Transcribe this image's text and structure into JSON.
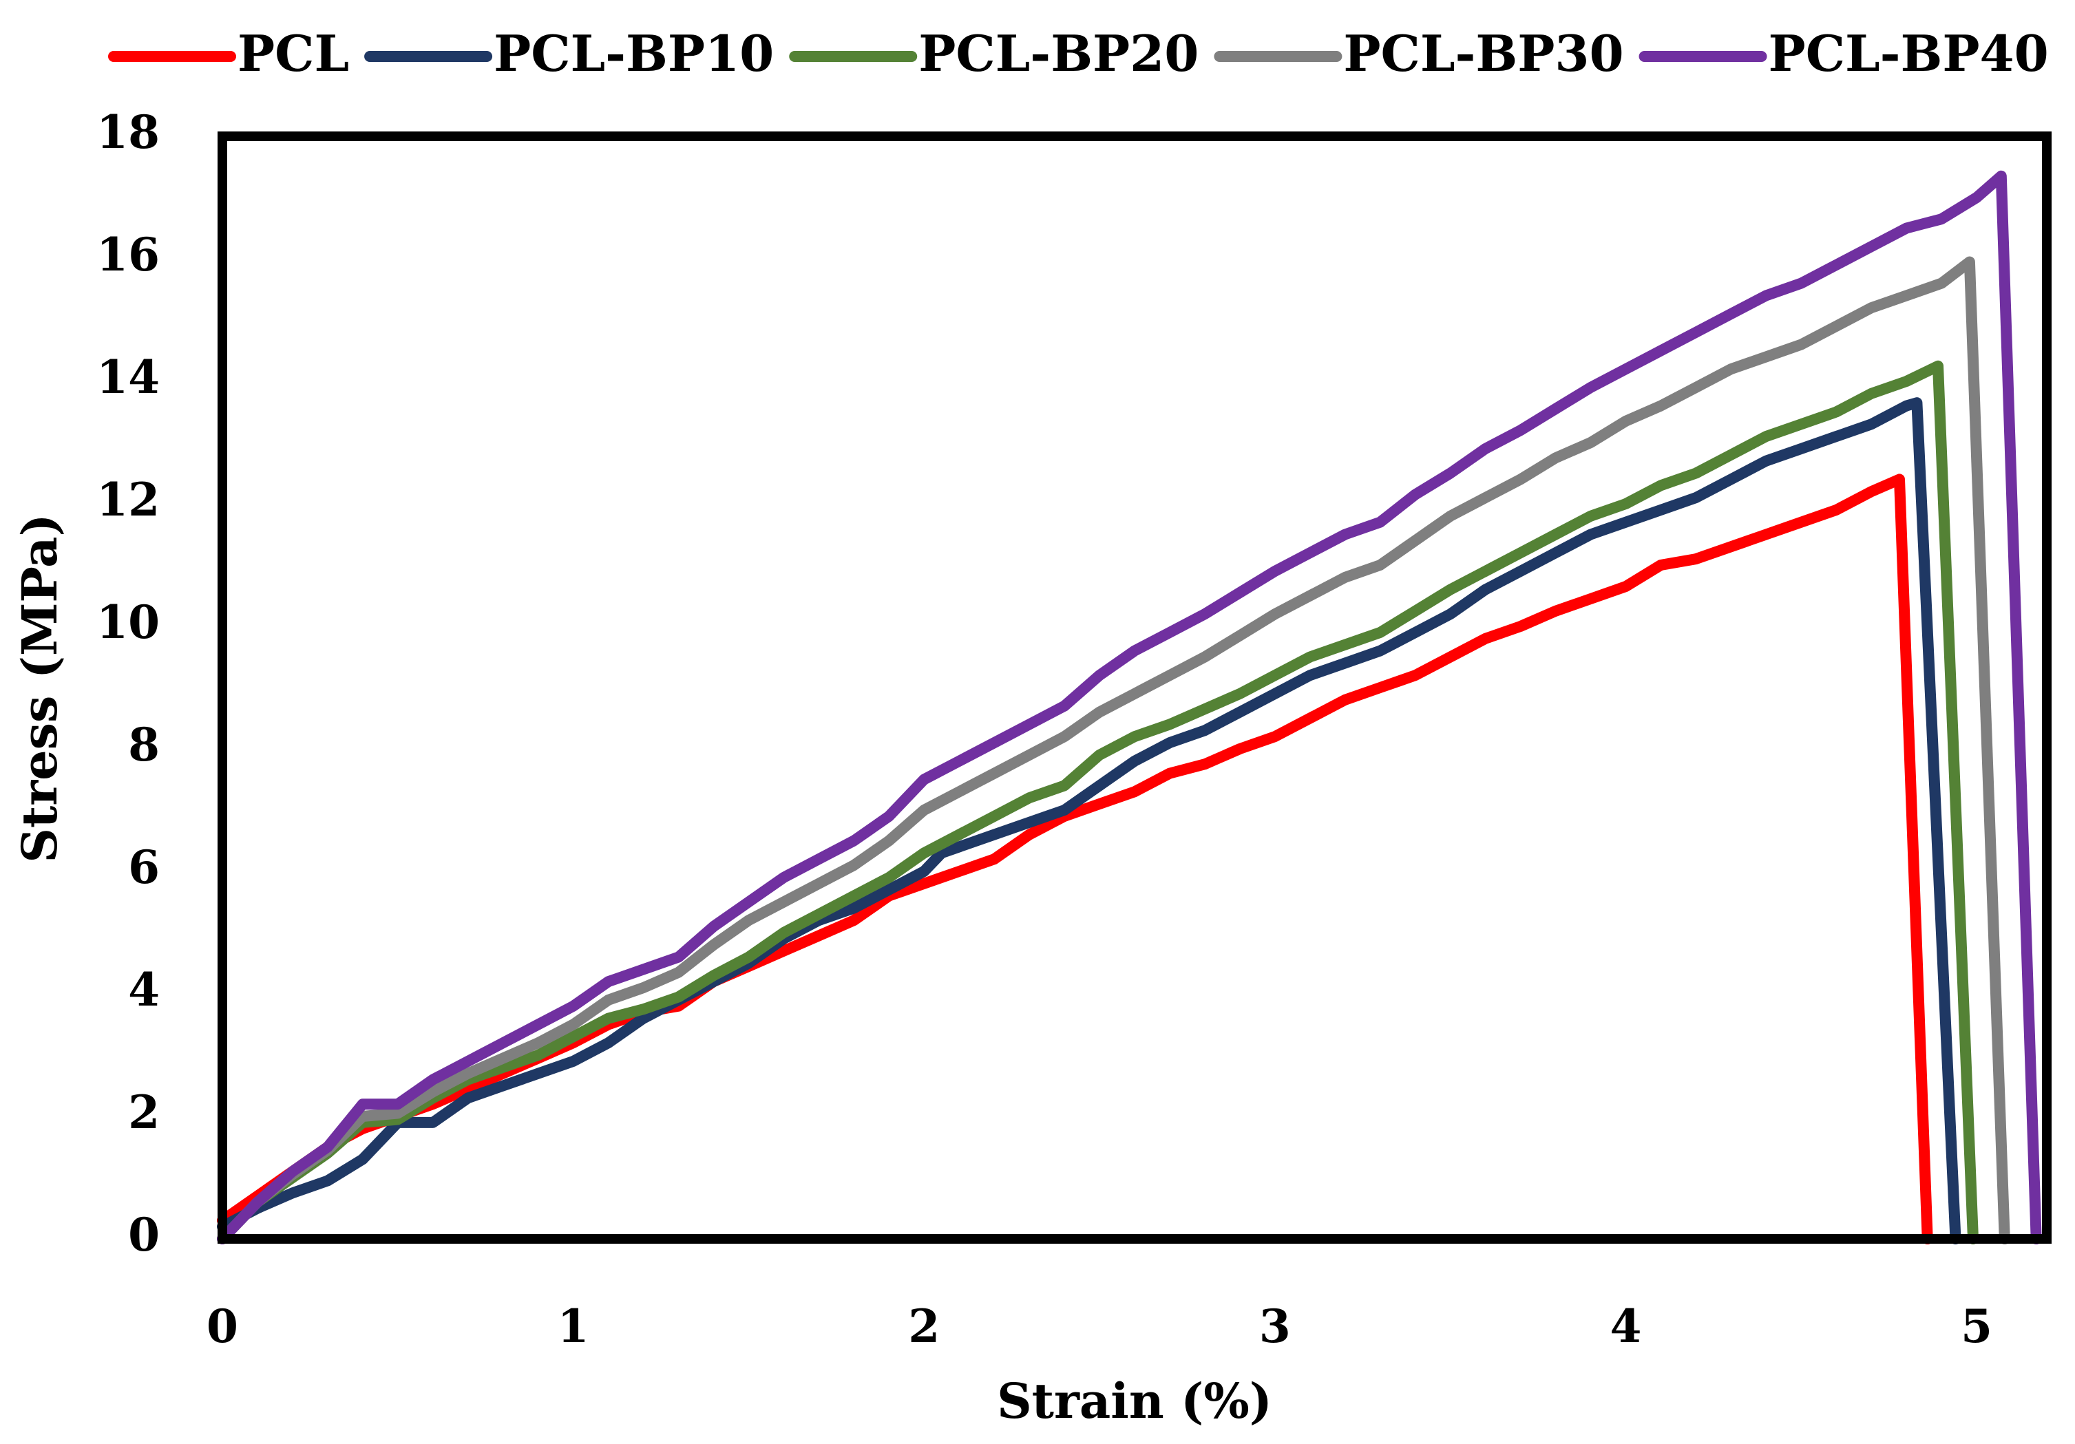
{
  "chart_data": {
    "type": "line",
    "title": "",
    "xlabel": "Strain (%)",
    "ylabel": "Stress (MPa)",
    "xlim": [
      0,
      5.2
    ],
    "ylim": [
      0,
      18
    ],
    "x_ticks": [
      "0",
      "1",
      "2",
      "3",
      "4",
      "5"
    ],
    "y_ticks": [
      "0",
      "2",
      "4",
      "6",
      "8",
      "10",
      "12",
      "14",
      "16",
      "18"
    ],
    "grid": false,
    "legend_position": "top",
    "series": [
      {
        "name": "PCL",
        "color": "#ff0000",
        "points": [
          [
            0,
            0.3
          ],
          [
            0.1,
            0.7
          ],
          [
            0.2,
            1.1
          ],
          [
            0.3,
            1.5
          ],
          [
            0.4,
            1.8
          ],
          [
            0.5,
            2.0
          ],
          [
            0.6,
            2.2
          ],
          [
            0.7,
            2.45
          ],
          [
            0.8,
            2.7
          ],
          [
            0.9,
            2.95
          ],
          [
            1.0,
            3.2
          ],
          [
            1.1,
            3.5
          ],
          [
            1.2,
            3.7
          ],
          [
            1.3,
            3.8
          ],
          [
            1.4,
            4.2
          ],
          [
            1.5,
            4.45
          ],
          [
            1.6,
            4.7
          ],
          [
            1.7,
            4.95
          ],
          [
            1.8,
            5.2
          ],
          [
            1.9,
            5.6
          ],
          [
            2.0,
            5.8
          ],
          [
            2.1,
            6.0
          ],
          [
            2.2,
            6.2
          ],
          [
            2.3,
            6.6
          ],
          [
            2.4,
            6.9
          ],
          [
            2.5,
            7.1
          ],
          [
            2.6,
            7.3
          ],
          [
            2.7,
            7.6
          ],
          [
            2.8,
            7.75
          ],
          [
            2.9,
            8.0
          ],
          [
            3.0,
            8.2
          ],
          [
            3.1,
            8.5
          ],
          [
            3.2,
            8.8
          ],
          [
            3.3,
            9.0
          ],
          [
            3.4,
            9.2
          ],
          [
            3.5,
            9.5
          ],
          [
            3.6,
            9.8
          ],
          [
            3.7,
            10.0
          ],
          [
            3.8,
            10.25
          ],
          [
            3.9,
            10.45
          ],
          [
            4.0,
            10.65
          ],
          [
            4.1,
            11.0
          ],
          [
            4.2,
            11.1
          ],
          [
            4.3,
            11.3
          ],
          [
            4.4,
            11.5
          ],
          [
            4.5,
            11.7
          ],
          [
            4.6,
            11.9
          ],
          [
            4.7,
            12.2
          ],
          [
            4.78,
            12.4
          ],
          [
            4.86,
            0
          ]
        ]
      },
      {
        "name": "PCL-BP10",
        "color": "#1f3864",
        "points": [
          [
            0,
            0.2
          ],
          [
            0.1,
            0.5
          ],
          [
            0.2,
            0.75
          ],
          [
            0.3,
            0.95
          ],
          [
            0.4,
            1.3
          ],
          [
            0.5,
            1.9
          ],
          [
            0.6,
            1.9
          ],
          [
            0.7,
            2.3
          ],
          [
            0.8,
            2.5
          ],
          [
            0.9,
            2.7
          ],
          [
            1.0,
            2.9
          ],
          [
            1.1,
            3.2
          ],
          [
            1.2,
            3.6
          ],
          [
            1.3,
            3.9
          ],
          [
            1.4,
            4.2
          ],
          [
            1.5,
            4.5
          ],
          [
            1.6,
            4.9
          ],
          [
            1.7,
            5.2
          ],
          [
            1.8,
            5.4
          ],
          [
            1.9,
            5.7
          ],
          [
            2.0,
            6.0
          ],
          [
            2.05,
            6.3
          ],
          [
            2.2,
            6.6
          ],
          [
            2.3,
            6.8
          ],
          [
            2.4,
            7.0
          ],
          [
            2.5,
            7.4
          ],
          [
            2.6,
            7.8
          ],
          [
            2.7,
            8.1
          ],
          [
            2.8,
            8.3
          ],
          [
            2.9,
            8.6
          ],
          [
            3.0,
            8.9
          ],
          [
            3.1,
            9.2
          ],
          [
            3.2,
            9.4
          ],
          [
            3.3,
            9.6
          ],
          [
            3.4,
            9.9
          ],
          [
            3.5,
            10.2
          ],
          [
            3.6,
            10.6
          ],
          [
            3.7,
            10.9
          ],
          [
            3.8,
            11.2
          ],
          [
            3.9,
            11.5
          ],
          [
            4.0,
            11.7
          ],
          [
            4.1,
            11.9
          ],
          [
            4.2,
            12.1
          ],
          [
            4.3,
            12.4
          ],
          [
            4.4,
            12.7
          ],
          [
            4.5,
            12.9
          ],
          [
            4.6,
            13.1
          ],
          [
            4.7,
            13.3
          ],
          [
            4.8,
            13.6
          ],
          [
            4.83,
            13.65
          ],
          [
            4.94,
            0
          ]
        ]
      },
      {
        "name": "PCL-BP20",
        "color": "#548235",
        "points": [
          [
            0,
            0
          ],
          [
            0.1,
            0.6
          ],
          [
            0.2,
            1.0
          ],
          [
            0.3,
            1.4
          ],
          [
            0.4,
            1.9
          ],
          [
            0.5,
            1.95
          ],
          [
            0.6,
            2.3
          ],
          [
            0.7,
            2.6
          ],
          [
            0.8,
            2.8
          ],
          [
            0.9,
            3.0
          ],
          [
            1.0,
            3.3
          ],
          [
            1.1,
            3.6
          ],
          [
            1.2,
            3.75
          ],
          [
            1.3,
            3.95
          ],
          [
            1.4,
            4.3
          ],
          [
            1.5,
            4.6
          ],
          [
            1.6,
            5.0
          ],
          [
            1.7,
            5.3
          ],
          [
            1.8,
            5.6
          ],
          [
            1.9,
            5.9
          ],
          [
            2.0,
            6.3
          ],
          [
            2.1,
            6.6
          ],
          [
            2.2,
            6.9
          ],
          [
            2.3,
            7.2
          ],
          [
            2.4,
            7.4
          ],
          [
            2.5,
            7.9
          ],
          [
            2.6,
            8.2
          ],
          [
            2.7,
            8.4
          ],
          [
            2.8,
            8.65
          ],
          [
            2.9,
            8.9
          ],
          [
            3.0,
            9.2
          ],
          [
            3.1,
            9.5
          ],
          [
            3.2,
            9.7
          ],
          [
            3.3,
            9.9
          ],
          [
            3.4,
            10.25
          ],
          [
            3.5,
            10.6
          ],
          [
            3.6,
            10.9
          ],
          [
            3.7,
            11.2
          ],
          [
            3.8,
            11.5
          ],
          [
            3.9,
            11.8
          ],
          [
            4.0,
            12.0
          ],
          [
            4.1,
            12.3
          ],
          [
            4.2,
            12.5
          ],
          [
            4.3,
            12.8
          ],
          [
            4.4,
            13.1
          ],
          [
            4.5,
            13.3
          ],
          [
            4.6,
            13.5
          ],
          [
            4.7,
            13.8
          ],
          [
            4.8,
            14.0
          ],
          [
            4.89,
            14.25
          ],
          [
            4.99,
            0
          ]
        ]
      },
      {
        "name": "PCL-BP30",
        "color": "#7f7f7f",
        "points": [
          [
            0,
            0
          ],
          [
            0.1,
            0.6
          ],
          [
            0.2,
            1.05
          ],
          [
            0.3,
            1.45
          ],
          [
            0.4,
            2.0
          ],
          [
            0.5,
            2.05
          ],
          [
            0.6,
            2.4
          ],
          [
            0.7,
            2.7
          ],
          [
            0.8,
            2.95
          ],
          [
            0.9,
            3.2
          ],
          [
            1.0,
            3.5
          ],
          [
            1.1,
            3.9
          ],
          [
            1.2,
            4.1
          ],
          [
            1.3,
            4.35
          ],
          [
            1.4,
            4.8
          ],
          [
            1.5,
            5.2
          ],
          [
            1.6,
            5.5
          ],
          [
            1.7,
            5.8
          ],
          [
            1.8,
            6.1
          ],
          [
            1.9,
            6.5
          ],
          [
            2.0,
            7.0
          ],
          [
            2.1,
            7.3
          ],
          [
            2.2,
            7.6
          ],
          [
            2.3,
            7.9
          ],
          [
            2.4,
            8.2
          ],
          [
            2.5,
            8.6
          ],
          [
            2.6,
            8.9
          ],
          [
            2.7,
            9.2
          ],
          [
            2.8,
            9.5
          ],
          [
            2.9,
            9.85
          ],
          [
            3.0,
            10.2
          ],
          [
            3.1,
            10.5
          ],
          [
            3.2,
            10.8
          ],
          [
            3.3,
            11.0
          ],
          [
            3.4,
            11.4
          ],
          [
            3.5,
            11.8
          ],
          [
            3.6,
            12.1
          ],
          [
            3.7,
            12.4
          ],
          [
            3.8,
            12.75
          ],
          [
            3.9,
            13.0
          ],
          [
            4.0,
            13.35
          ],
          [
            4.1,
            13.6
          ],
          [
            4.2,
            13.9
          ],
          [
            4.3,
            14.2
          ],
          [
            4.4,
            14.4
          ],
          [
            4.5,
            14.6
          ],
          [
            4.6,
            14.9
          ],
          [
            4.7,
            15.2
          ],
          [
            4.8,
            15.4
          ],
          [
            4.9,
            15.6
          ],
          [
            4.98,
            15.95
          ],
          [
            5.08,
            0
          ]
        ]
      },
      {
        "name": "PCL-BP40",
        "color": "#7030a0",
        "points": [
          [
            0,
            0
          ],
          [
            0.1,
            0.6
          ],
          [
            0.2,
            1.1
          ],
          [
            0.3,
            1.5
          ],
          [
            0.4,
            2.2
          ],
          [
            0.5,
            2.2
          ],
          [
            0.6,
            2.6
          ],
          [
            0.7,
            2.9
          ],
          [
            0.8,
            3.2
          ],
          [
            0.9,
            3.5
          ],
          [
            1.0,
            3.8
          ],
          [
            1.1,
            4.2
          ],
          [
            1.2,
            4.4
          ],
          [
            1.3,
            4.6
          ],
          [
            1.4,
            5.1
          ],
          [
            1.5,
            5.5
          ],
          [
            1.6,
            5.9
          ],
          [
            1.7,
            6.2
          ],
          [
            1.8,
            6.5
          ],
          [
            1.9,
            6.9
          ],
          [
            2.0,
            7.5
          ],
          [
            2.1,
            7.8
          ],
          [
            2.2,
            8.1
          ],
          [
            2.3,
            8.4
          ],
          [
            2.4,
            8.7
          ],
          [
            2.5,
            9.2
          ],
          [
            2.6,
            9.6
          ],
          [
            2.7,
            9.9
          ],
          [
            2.8,
            10.2
          ],
          [
            2.9,
            10.55
          ],
          [
            3.0,
            10.9
          ],
          [
            3.1,
            11.2
          ],
          [
            3.2,
            11.5
          ],
          [
            3.3,
            11.7
          ],
          [
            3.4,
            12.15
          ],
          [
            3.5,
            12.5
          ],
          [
            3.6,
            12.9
          ],
          [
            3.7,
            13.2
          ],
          [
            3.8,
            13.55
          ],
          [
            3.9,
            13.9
          ],
          [
            4.0,
            14.2
          ],
          [
            4.1,
            14.5
          ],
          [
            4.2,
            14.8
          ],
          [
            4.3,
            15.1
          ],
          [
            4.4,
            15.4
          ],
          [
            4.5,
            15.6
          ],
          [
            4.6,
            15.9
          ],
          [
            4.7,
            16.2
          ],
          [
            4.8,
            16.5
          ],
          [
            4.9,
            16.65
          ],
          [
            5.0,
            17.0
          ],
          [
            5.07,
            17.35
          ],
          [
            5.17,
            0
          ]
        ]
      }
    ]
  }
}
